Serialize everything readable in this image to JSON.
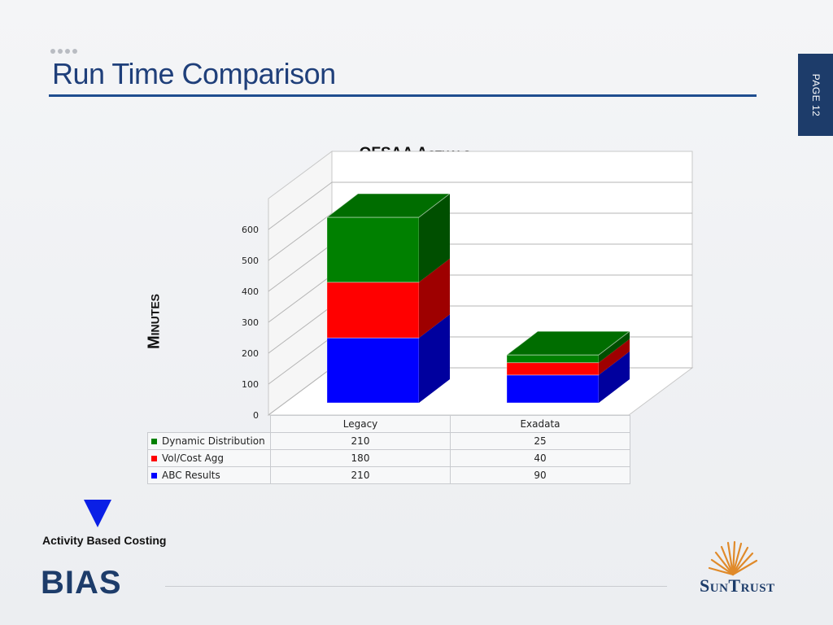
{
  "slide": {
    "title": "Run Time Comparison",
    "page_label": "PAGE 12"
  },
  "footer": {
    "arrow_label": "Activity Based Costing",
    "brand": "BIAS",
    "logo_text": "SunTrust"
  },
  "colors": {
    "title": "#1f3f7a",
    "brand_navy": "#1d3c6a",
    "arrow": "#0a1fe6"
  },
  "chart_data": {
    "type": "bar",
    "stacked": true,
    "three_d": true,
    "title": "OFSAA Actuals",
    "xlabel": "",
    "ylabel": "Minutes",
    "categories": [
      "Legacy",
      "Exadata"
    ],
    "series": [
      {
        "name": "Dynamic Distribution",
        "values": [
          210,
          25
        ],
        "color": "#008000"
      },
      {
        "name": "Vol/Cost Agg",
        "values": [
          180,
          40
        ],
        "color": "#ff0000"
      },
      {
        "name": "ABC Results",
        "values": [
          210,
          90
        ],
        "color": "#0000ff"
      }
    ],
    "yticks": [
      0,
      100,
      200,
      300,
      400,
      500,
      600
    ],
    "ylim": [
      0,
      600
    ],
    "grid": true,
    "legend": "data-table"
  }
}
